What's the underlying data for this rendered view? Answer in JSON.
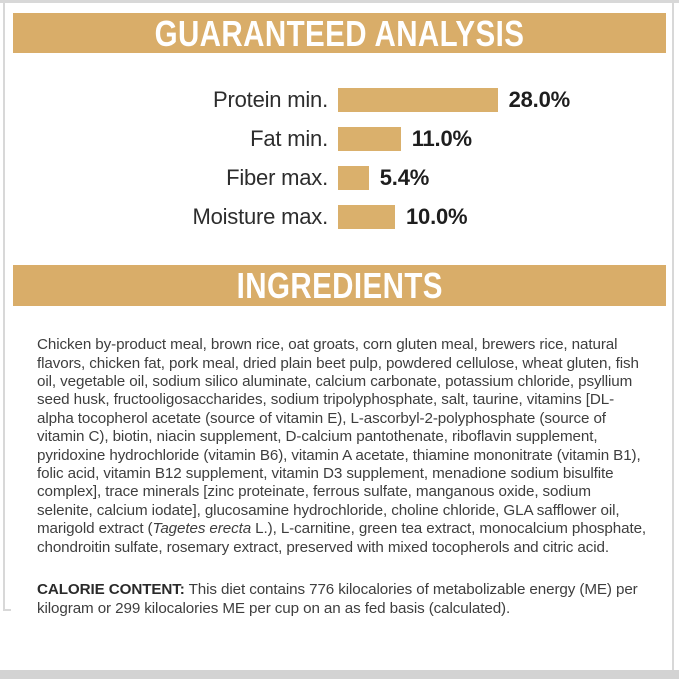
{
  "colors": {
    "banner-bg": "#d9ad69",
    "banner-text": "#ffffff",
    "bar-fill": "#dab06c",
    "text-primary": "#2d2d2d",
    "text-body": "#3e3e3e",
    "frame": "#d8d8d8",
    "frame-bottom": "#d3d3d3"
  },
  "guaranteed_analysis": {
    "title": "GUARANTEED ANALYSIS"
  },
  "chart_data": {
    "type": "bar",
    "orientation": "horizontal",
    "title": "GUARANTEED ANALYSIS",
    "categories": [
      "Protein min.",
      "Fat min.",
      "Fiber max.",
      "Moisture max."
    ],
    "values": [
      28.0,
      11.0,
      5.4,
      10.0
    ],
    "value_labels": [
      "28.0%",
      "11.0%",
      "5.4%",
      "10.0%"
    ],
    "unit": "%",
    "xlim": [
      0,
      30
    ],
    "bar_color": "#dab06c",
    "grid": false,
    "legend": false
  },
  "ingredients": {
    "title": "INGREDIENTS",
    "text_before_italic": "Chicken by-product meal, brown rice, oat groats, corn gluten meal, brewers rice, natural flavors, chicken fat, pork meal, dried plain beet pulp, powdered cellulose, wheat gluten, fish oil, vegetable oil, sodium silico aluminate, calcium carbonate, potassium chloride, psyllium seed husk, fructooligosaccharides, sodium tripolyphosphate, salt, taurine, vitamins [DL-alpha tocopherol acetate (source of vitamin E), L-ascorbyl-2-polyphosphate (source of vitamin C), biotin, niacin supplement, D-calcium pantothenate, riboflavin supplement, pyridoxine hydrochloride (vitamin B6), vitamin A acetate, thiamine mononitrate (vitamin B1), folic acid, vitamin B12 supplement, vitamin D3 supplement, menadione sodium bisulfite complex], trace minerals [zinc proteinate, ferrous sulfate, manganous oxide, sodium selenite, calcium iodate], glucosamine hydrochloride, choline chloride, GLA safflower oil, marigold extract (",
    "species_italic": "Tagetes erecta",
    "text_after_italic": " L.), L-carnitine, green tea extract, monocalcium phosphate, chondroitin sulfate, rosemary extract, preserved with mixed tocopherols and citric acid."
  },
  "calorie_content": {
    "label": "CALORIE CONTENT:",
    "text": " This diet contains 776 kilocalories of metabolizable energy (ME) per kilogram or 299 kilocalories ME per cup on an as fed basis (calculated)."
  }
}
